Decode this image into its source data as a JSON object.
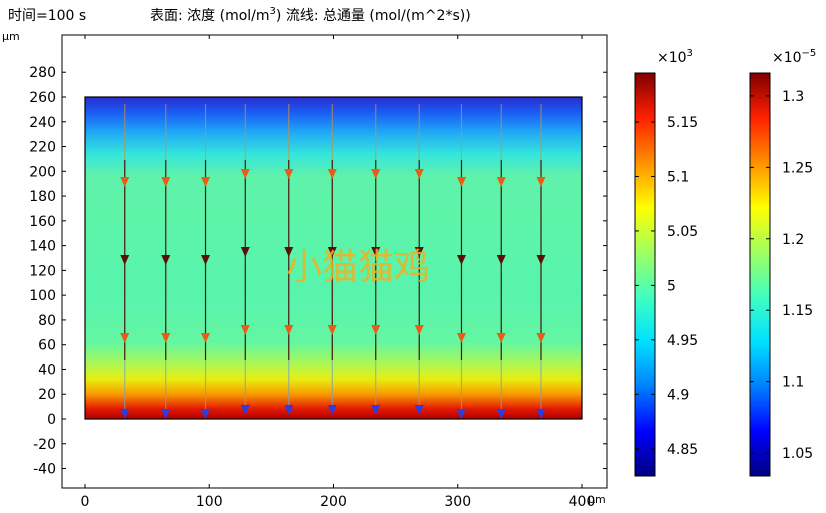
{
  "header": {
    "time_label": "时间=100 s",
    "title_prefix": "表面: 浓度 (mol/m",
    "title_sup": "3",
    "title_suffix": ") 流线: 总通量 (mol/(m^2*s))"
  },
  "watermark": "小猫猫鸡",
  "chart_data": {
    "type": "heatmap",
    "title": "表面: 浓度 (mol/m3) 流线: 总通量 (mol/(m^2*s))",
    "x_unit": "µm",
    "y_unit": "µm",
    "xlim": [
      -7,
      420
    ],
    "ylim": [
      -48,
      300
    ],
    "x_ticks": [
      0,
      100,
      200,
      300,
      400
    ],
    "y_ticks": [
      -40,
      -20,
      0,
      20,
      40,
      60,
      80,
      100,
      120,
      140,
      160,
      180,
      200,
      220,
      240,
      260,
      280
    ],
    "domain": {
      "x": [
        0,
        400
      ],
      "y": [
        0,
        260
      ]
    },
    "surface_colors": [
      {
        "y": 0,
        "color": "#b00000"
      },
      {
        "y": 8,
        "color": "#e21800"
      },
      {
        "y": 20,
        "color": "#f89a00"
      },
      {
        "y": 32,
        "color": "#e8ee10"
      },
      {
        "y": 46,
        "color": "#a6f85c"
      },
      {
        "y": 62,
        "color": "#64f6a2"
      },
      {
        "y": 100,
        "color": "#58f4ae"
      },
      {
        "y": 160,
        "color": "#5cf4a8"
      },
      {
        "y": 196,
        "color": "#60f2aa"
      },
      {
        "y": 214,
        "color": "#34e6dc"
      },
      {
        "y": 232,
        "color": "#1fa6f6"
      },
      {
        "y": 248,
        "color": "#1a5af4"
      },
      {
        "y": 260,
        "color": "#2a2ccc"
      }
    ],
    "streamlines_x": [
      32,
      65,
      97,
      129,
      164,
      199,
      234,
      269,
      303,
      335,
      367
    ],
    "arrow_rows": [
      {
        "label": "upper",
        "color": "#ea5c14"
      },
      {
        "label": "middle",
        "color": "#5a1006"
      },
      {
        "label": "lower",
        "color": "#ea5c14"
      },
      {
        "label": "bottom",
        "color": "#2c3ce4"
      }
    ],
    "colorbars": [
      {
        "name": "concentration",
        "multiplier_base": "×10",
        "multiplier_exp": "3",
        "range": [
          4.825,
          5.195
        ],
        "ticks": [
          {
            "v": 4.85,
            "label": "4.85"
          },
          {
            "v": 4.9,
            "label": "4.9"
          },
          {
            "v": 4.95,
            "label": "4.95"
          },
          {
            "v": 5.0,
            "label": "5"
          },
          {
            "v": 5.05,
            "label": "5.05"
          },
          {
            "v": 5.1,
            "label": "5.1"
          },
          {
            "v": 5.15,
            "label": "5.15"
          }
        ]
      },
      {
        "name": "total-flux",
        "multiplier_base": "×10",
        "multiplier_exp": "−5",
        "range": [
          1.034,
          1.316
        ],
        "ticks": [
          {
            "v": 1.05,
            "label": "1.05"
          },
          {
            "v": 1.1,
            "label": "1.1"
          },
          {
            "v": 1.15,
            "label": "1.15"
          },
          {
            "v": 1.2,
            "label": "1.2"
          },
          {
            "v": 1.25,
            "label": "1.25"
          },
          {
            "v": 1.3,
            "label": "1.3"
          }
        ]
      }
    ],
    "jet_colors": [
      "#000080",
      "#0000ff",
      "#0080ff",
      "#00e0ff",
      "#40ffc0",
      "#a0ff60",
      "#ffff00",
      "#ff9000",
      "#ff2000",
      "#800000"
    ]
  }
}
